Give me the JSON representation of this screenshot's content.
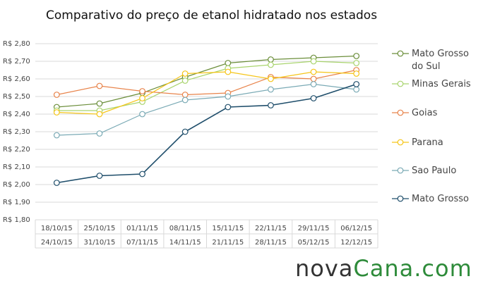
{
  "chart_data": {
    "type": "line",
    "title": "Comparativo do preço de etanol hidratado nos estados",
    "categories": [
      [
        "18/10/15",
        "24/10/15"
      ],
      [
        "25/10/15",
        "31/10/15"
      ],
      [
        "01/11/15",
        "07/11/15"
      ],
      [
        "08/11/15",
        "14/11/15"
      ],
      [
        "15/11/15",
        "21/11/15"
      ],
      [
        "22/11/15",
        "28/11/15"
      ],
      [
        "29/11/15",
        "05/12/15"
      ],
      [
        "06/12/15",
        "12/12/15"
      ]
    ],
    "series": [
      {
        "name": "Mato Grosso do Sul",
        "color": "#6b8e3a",
        "values": [
          2.44,
          2.46,
          2.52,
          2.61,
          2.69,
          2.71,
          2.72,
          2.73
        ]
      },
      {
        "name": "Minas Gerais",
        "color": "#a9d46e",
        "values": [
          2.42,
          2.42,
          2.47,
          2.59,
          2.66,
          2.68,
          2.7,
          2.69
        ]
      },
      {
        "name": "Goias",
        "color": "#e8834a",
        "values": [
          2.51,
          2.56,
          2.53,
          2.51,
          2.52,
          2.61,
          2.6,
          2.65
        ]
      },
      {
        "name": "Parana",
        "color": "#f5c518",
        "values": [
          2.41,
          2.4,
          2.49,
          2.63,
          2.64,
          2.6,
          2.64,
          2.63
        ]
      },
      {
        "name": "Sao Paulo",
        "color": "#7aaab5",
        "values": [
          2.28,
          2.29,
          2.4,
          2.48,
          2.5,
          2.54,
          2.57,
          2.54
        ]
      },
      {
        "name": "Mato Grosso",
        "color": "#1f4e6b",
        "values": [
          2.01,
          2.05,
          2.06,
          2.3,
          2.44,
          2.45,
          2.49,
          2.57
        ]
      }
    ],
    "ylim": [
      1.8,
      2.8
    ],
    "yticks": [
      {
        "value": 1.8,
        "label": "R$ 1,80"
      },
      {
        "value": 1.9,
        "label": "R$ 1,90"
      },
      {
        "value": 2.0,
        "label": "R$ 2,00"
      },
      {
        "value": 2.1,
        "label": "R$ 2,10"
      },
      {
        "value": 2.2,
        "label": "R$ 2,20"
      },
      {
        "value": 2.3,
        "label": "R$ 2,30"
      },
      {
        "value": 2.4,
        "label": "R$ 2,40"
      },
      {
        "value": 2.5,
        "label": "R$ 2,50"
      },
      {
        "value": 2.6,
        "label": "R$ 2,60"
      },
      {
        "value": 2.7,
        "label": "R$ 2,70"
      },
      {
        "value": 2.8,
        "label": "R$ 2,80"
      }
    ],
    "grid": true,
    "legend": "right",
    "brand": [
      "nova",
      "Cana",
      ".com"
    ]
  }
}
